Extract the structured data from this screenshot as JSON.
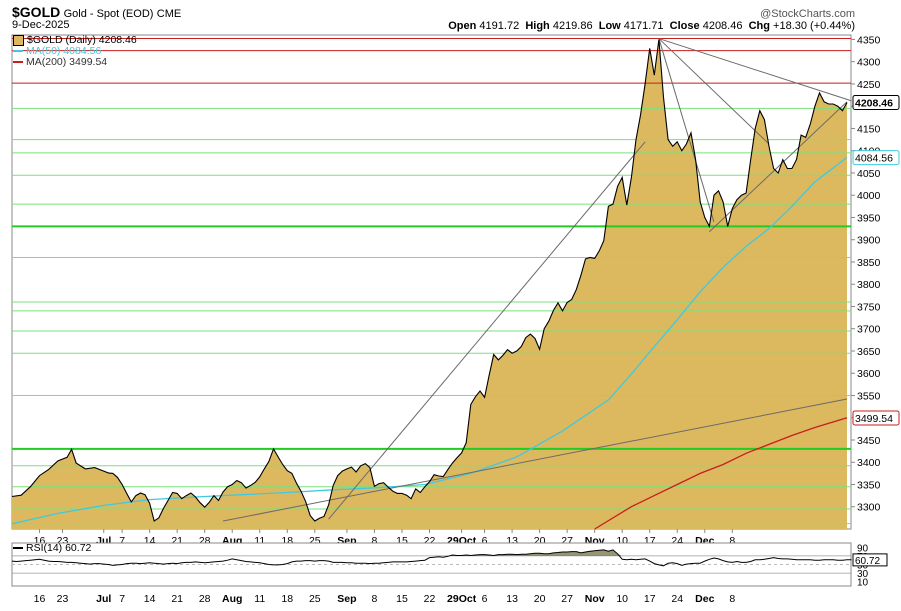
{
  "header": {
    "symbol": "$GOLD",
    "name": "Gold - Spot (EOD)",
    "exchange": "CME",
    "date": "9-Dec-2025",
    "copyright": "@StockCharts.com",
    "ohlc": {
      "open_label": "Open",
      "open": "4191.72",
      "high_label": "High",
      "high": "4219.86",
      "low_label": "Low",
      "low": "4171.71",
      "close_label": "Close",
      "close": "4208.46",
      "chg_label": "Chg",
      "chg": "+18.30 (+0.44%)"
    }
  },
  "legend": [
    {
      "text": "$GOLD (Daily) 4208.46",
      "color": "#d9b85c"
    },
    {
      "text": "MA(50) 4084.56",
      "color": "#3ec9e0"
    },
    {
      "text": "MA(200) 3499.54",
      "color": "#c81e1e"
    }
  ],
  "colors": {
    "fill": "#dcb95f",
    "price": "#000000",
    "ma50": "#3ec9e0",
    "ma200": "#c81e1e",
    "hline_light": "#7be07b",
    "hline_bold": "#22cc22",
    "hline_red": "#c81e1e",
    "trend": "#6a6a6a"
  },
  "chart_data": {
    "type": "area",
    "price": [
      [
        0,
        3323
      ],
      [
        2,
        3326
      ],
      [
        4,
        3345
      ],
      [
        6,
        3370
      ],
      [
        8,
        3384
      ],
      [
        10,
        3403
      ],
      [
        12,
        3411
      ],
      [
        13,
        3429
      ],
      [
        14,
        3398
      ],
      [
        16,
        3385
      ],
      [
        18,
        3388
      ],
      [
        20,
        3380
      ],
      [
        21,
        3376
      ],
      [
        22,
        3375
      ],
      [
        23,
        3366
      ],
      [
        24,
        3350
      ],
      [
        25,
        3330
      ],
      [
        26,
        3311
      ],
      [
        27,
        3325
      ],
      [
        28,
        3331
      ],
      [
        29,
        3327
      ],
      [
        30,
        3308
      ],
      [
        31,
        3268
      ],
      [
        32,
        3275
      ],
      [
        33,
        3296
      ],
      [
        34,
        3314
      ],
      [
        35,
        3332
      ],
      [
        36,
        3330
      ],
      [
        37,
        3318
      ],
      [
        38,
        3325
      ],
      [
        39,
        3331
      ],
      [
        40,
        3322
      ],
      [
        41,
        3309
      ],
      [
        42,
        3299
      ],
      [
        43,
        3310
      ],
      [
        44,
        3325
      ],
      [
        45,
        3314
      ],
      [
        46,
        3333
      ],
      [
        47,
        3345
      ],
      [
        48,
        3350
      ],
      [
        49,
        3359
      ],
      [
        50,
        3354
      ],
      [
        51,
        3342
      ],
      [
        52,
        3348
      ],
      [
        53,
        3355
      ],
      [
        54,
        3367
      ],
      [
        55,
        3385
      ],
      [
        56,
        3402
      ],
      [
        57,
        3430
      ],
      [
        58,
        3412
      ],
      [
        59,
        3395
      ],
      [
        60,
        3381
      ],
      [
        61,
        3375
      ],
      [
        62,
        3353
      ],
      [
        63,
        3335
      ],
      [
        64,
        3312
      ],
      [
        65,
        3280
      ],
      [
        66,
        3268
      ],
      [
        67,
        3274
      ],
      [
        68,
        3278
      ],
      [
        69,
        3304
      ],
      [
        70,
        3348
      ],
      [
        71,
        3370
      ],
      [
        72,
        3380
      ],
      [
        73,
        3385
      ],
      [
        74,
        3389
      ],
      [
        75,
        3378
      ],
      [
        76,
        3392
      ],
      [
        77,
        3397
      ],
      [
        78,
        3388
      ],
      [
        79,
        3346
      ],
      [
        80,
        3352
      ],
      [
        81,
        3354
      ],
      [
        82,
        3344
      ],
      [
        83,
        3335
      ],
      [
        84,
        3330
      ],
      [
        85,
        3330
      ],
      [
        86,
        3326
      ],
      [
        87,
        3318
      ],
      [
        88,
        3340
      ],
      [
        89,
        3332
      ],
      [
        90,
        3345
      ],
      [
        91,
        3356
      ],
      [
        92,
        3372
      ],
      [
        93,
        3369
      ],
      [
        94,
        3368
      ],
      [
        95,
        3384
      ],
      [
        96,
        3398
      ],
      [
        97,
        3410
      ],
      [
        98,
        3421
      ],
      [
        99,
        3444
      ],
      [
        100,
        3530
      ],
      [
        101,
        3547
      ],
      [
        102,
        3560
      ],
      [
        103,
        3546
      ],
      [
        104,
        3595
      ],
      [
        105,
        3642
      ],
      [
        106,
        3630
      ],
      [
        107,
        3640
      ],
      [
        108,
        3653
      ],
      [
        109,
        3645
      ],
      [
        110,
        3650
      ],
      [
        111,
        3660
      ],
      [
        112,
        3680
      ],
      [
        113,
        3688
      ],
      [
        114,
        3678
      ],
      [
        115,
        3654
      ],
      [
        116,
        3700
      ],
      [
        117,
        3717
      ],
      [
        118,
        3741
      ],
      [
        119,
        3758
      ],
      [
        120,
        3740
      ],
      [
        121,
        3759
      ],
      [
        122,
        3766
      ],
      [
        123,
        3788
      ],
      [
        124,
        3820
      ],
      [
        125,
        3857
      ],
      [
        126,
        3860
      ],
      [
        127,
        3858
      ],
      [
        128,
        3875
      ],
      [
        129,
        3898
      ],
      [
        130,
        3975
      ],
      [
        131,
        3980
      ],
      [
        132,
        4020
      ],
      [
        133,
        4040
      ],
      [
        134,
        3978
      ],
      [
        135,
        4040
      ],
      [
        136,
        4125
      ],
      [
        137,
        4180
      ],
      [
        138,
        4250
      ],
      [
        139,
        4330
      ],
      [
        140,
        4270
      ],
      [
        141,
        4350
      ],
      [
        142,
        4220
      ],
      [
        143,
        4125
      ],
      [
        144,
        4110
      ],
      [
        145,
        4120
      ],
      [
        146,
        4100
      ],
      [
        147,
        4115
      ],
      [
        148,
        4140
      ],
      [
        149,
        4080
      ],
      [
        150,
        3985
      ],
      [
        151,
        3950
      ],
      [
        152,
        3930
      ],
      [
        153,
        4000
      ],
      [
        154,
        4010
      ],
      [
        155,
        3985
      ],
      [
        156,
        3930
      ],
      [
        157,
        3970
      ],
      [
        158,
        3990
      ],
      [
        159,
        4000
      ],
      [
        160,
        4005
      ],
      [
        161,
        4080
      ],
      [
        162,
        4150
      ],
      [
        163,
        4190
      ],
      [
        164,
        4170
      ],
      [
        165,
        4110
      ],
      [
        166,
        4060
      ],
      [
        167,
        4050
      ],
      [
        168,
        4080
      ],
      [
        169,
        4060
      ],
      [
        170,
        4060
      ],
      [
        171,
        4080
      ],
      [
        172,
        4135
      ],
      [
        173,
        4130
      ],
      [
        174,
        4160
      ],
      [
        175,
        4200
      ],
      [
        176,
        4230
      ],
      [
        177,
        4210
      ],
      [
        178,
        4205
      ],
      [
        179,
        4205
      ],
      [
        180,
        4200
      ],
      [
        181,
        4190
      ],
      [
        182,
        4208
      ]
    ],
    "ma50": [
      [
        0,
        3262
      ],
      [
        10,
        3285
      ],
      [
        20,
        3303
      ],
      [
        30,
        3316
      ],
      [
        40,
        3322
      ],
      [
        50,
        3327
      ],
      [
        60,
        3332
      ],
      [
        70,
        3338
      ],
      [
        80,
        3343
      ],
      [
        90,
        3350
      ],
      [
        100,
        3375
      ],
      [
        110,
        3412
      ],
      [
        120,
        3470
      ],
      [
        130,
        3540
      ],
      [
        135,
        3598
      ],
      [
        140,
        3660
      ],
      [
        145,
        3720
      ],
      [
        150,
        3783
      ],
      [
        155,
        3838
      ],
      [
        160,
        3885
      ],
      [
        165,
        3925
      ],
      [
        170,
        3975
      ],
      [
        175,
        4030
      ],
      [
        182,
        4085
      ]
    ],
    "ma200": [
      [
        127,
        3250
      ],
      [
        135,
        3300
      ],
      [
        140,
        3325
      ],
      [
        145,
        3350
      ],
      [
        150,
        3375
      ],
      [
        155,
        3395
      ],
      [
        160,
        3420
      ],
      [
        165,
        3440
      ],
      [
        170,
        3460
      ],
      [
        175,
        3478
      ],
      [
        182,
        3500
      ]
    ],
    "hlines": [
      {
        "y": 4352,
        "style": "red"
      },
      {
        "y": 4325,
        "style": "red"
      },
      {
        "y": 4252,
        "style": "red"
      },
      {
        "y": 4195,
        "style": "light"
      },
      {
        "y": 4125,
        "style": "light"
      },
      {
        "y": 4095,
        "style": "light"
      },
      {
        "y": 4045,
        "style": "light"
      },
      {
        "y": 3980,
        "style": "light"
      },
      {
        "y": 3930,
        "style": "bold"
      },
      {
        "y": 3860,
        "style": "light"
      },
      {
        "y": 3760,
        "style": "light"
      },
      {
        "y": 3740,
        "style": "light"
      },
      {
        "y": 3695,
        "style": "light"
      },
      {
        "y": 3645,
        "style": "light"
      },
      {
        "y": 3550,
        "style": "light"
      },
      {
        "y": 3430,
        "style": "bold"
      },
      {
        "y": 3392,
        "style": "light"
      },
      {
        "y": 3345,
        "style": "light"
      },
      {
        "y": 3295,
        "style": "light"
      },
      {
        "y": 3262,
        "style": "light"
      }
    ],
    "trendlines": [
      [
        [
          46,
          3268
        ],
        [
          182,
          3542
        ]
      ],
      [
        [
          69,
          3272
        ],
        [
          138,
          4120
        ]
      ],
      [
        [
          152,
          3918
        ],
        [
          182,
          4210
        ]
      ],
      [
        [
          141,
          4352
        ],
        [
          183,
          4212
        ]
      ],
      [
        [
          141,
          4352
        ],
        [
          165,
          4115
        ]
      ],
      [
        [
          141,
          4352
        ],
        [
          153,
          3940
        ]
      ]
    ],
    "ylim": [
      3250,
      4360
    ],
    "yticks": [
      3300,
      3350,
      3400,
      3450,
      3500,
      3550,
      3600,
      3650,
      3700,
      3750,
      3800,
      3850,
      3900,
      3950,
      4000,
      4050,
      4100,
      4150,
      4200,
      4250,
      4300,
      4350
    ],
    "xticks": [
      {
        "i": 6,
        "label": "16"
      },
      {
        "i": 11,
        "label": "23"
      },
      {
        "i": 20,
        "label": "Jul"
      },
      {
        "i": 24,
        "label": "7"
      },
      {
        "i": 30,
        "label": "14"
      },
      {
        "i": 36,
        "label": "21"
      },
      {
        "i": 42,
        "label": "28"
      },
      {
        "i": 48,
        "label": "Aug"
      },
      {
        "i": 54,
        "label": "11"
      },
      {
        "i": 60,
        "label": "18"
      },
      {
        "i": 66,
        "label": "25"
      },
      {
        "i": 73,
        "label": "Sep"
      },
      {
        "i": 79,
        "label": "8"
      },
      {
        "i": 85,
        "label": "15"
      },
      {
        "i": 91,
        "label": "22"
      },
      {
        "i": 98,
        "label": "29Oct"
      },
      {
        "i": 103,
        "label": "6"
      },
      {
        "i": 109,
        "label": "13"
      },
      {
        "i": 115,
        "label": "20"
      },
      {
        "i": 121,
        "label": "27"
      },
      {
        "i": 127,
        "label": "Nov"
      },
      {
        "i": 133,
        "label": "10"
      },
      {
        "i": 139,
        "label": "17"
      },
      {
        "i": 145,
        "label": "24"
      },
      {
        "i": 151,
        "label": "Dec"
      },
      {
        "i": 157,
        "label": "8"
      }
    ],
    "value_tags": [
      {
        "y": 4208.46,
        "label": "4208.46",
        "style": "dark"
      },
      {
        "y": 4084.56,
        "label": "4084.56",
        "style": "cyan"
      },
      {
        "y": 3499.54,
        "label": "3499.54",
        "style": "red"
      }
    ]
  },
  "rsi": {
    "label": "RSI(14) 60.72",
    "value_label": "60.72",
    "yticks": [
      90,
      70,
      50,
      30,
      10
    ],
    "ylim": [
      0,
      100
    ],
    "values": [
      58,
      57,
      58,
      59,
      60,
      61,
      62,
      60,
      58,
      57,
      57,
      56,
      55,
      55,
      54,
      53,
      52,
      51,
      52,
      52,
      51,
      50,
      48,
      49,
      50,
      52,
      53,
      53,
      52,
      53,
      54,
      53,
      52,
      51,
      52,
      53,
      52,
      54,
      55,
      55,
      56,
      55,
      54,
      55,
      56,
      57,
      58,
      60,
      63,
      61,
      59,
      57,
      56,
      55,
      54,
      52,
      50,
      49,
      49,
      50,
      52,
      56,
      58,
      58,
      59,
      59,
      58,
      59,
      59,
      58,
      55,
      55,
      55,
      54,
      54,
      53,
      53,
      53,
      52,
      53,
      53,
      54,
      55,
      56,
      56,
      56,
      56,
      57,
      58,
      59,
      60,
      66,
      67,
      68,
      67,
      69,
      72,
      71,
      71,
      72,
      71,
      72,
      73,
      73,
      72,
      71,
      73,
      73,
      74,
      74,
      73,
      74,
      74,
      75,
      76,
      76,
      75,
      75,
      77,
      78,
      79,
      79,
      80,
      80,
      77,
      79,
      81,
      82,
      83,
      84,
      81,
      84,
      75,
      62,
      61,
      62,
      61,
      62,
      63,
      58,
      52,
      49,
      47,
      53,
      54,
      52,
      48,
      51,
      52,
      53,
      53,
      58,
      62,
      65,
      63,
      59,
      56,
      55,
      57,
      55,
      55,
      57,
      61,
      61,
      62,
      64,
      66,
      64,
      63,
      63,
      62,
      61,
      61,
      61,
      61,
      60,
      60,
      61,
      61,
      61,
      60,
      60,
      61,
      61
    ]
  }
}
